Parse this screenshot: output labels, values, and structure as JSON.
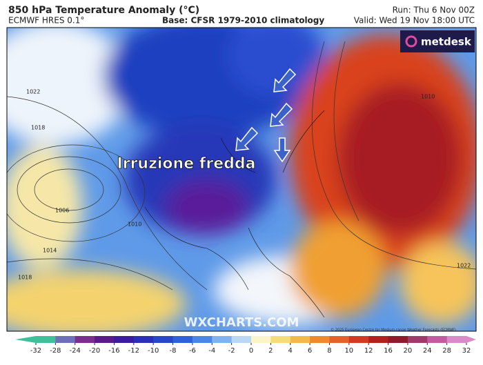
{
  "header": {
    "title": "850 hPa Temperature Anomaly (°C)",
    "model": "ECMWF HRES 0.1°",
    "base": "Base: CFSR 1979-2010 climatology",
    "run": "Run: Thu 6 Nov 00Z",
    "valid": "Valid: Wed 19 Nov 18:00 UTC"
  },
  "map": {
    "logo": "metdesk",
    "annotation": "Irruzione fredda",
    "watermark": "WXCHARTS.COM",
    "credit": "© 2025 European Centre for Medium-range Weather Forecasts (ECMWF)",
    "isobar_labels": [
      "1022",
      "1018",
      "1006",
      "1010",
      "1014",
      "1018",
      "1022",
      "1010"
    ]
  },
  "colorbar": {
    "ticks": [
      -32,
      -28,
      -24,
      -20,
      -16,
      -12,
      -10,
      -8,
      -6,
      -4,
      -2,
      0,
      2,
      4,
      6,
      8,
      10,
      12,
      16,
      20,
      24,
      28,
      32
    ],
    "colors": [
      "#3fbf9a",
      "#6e6fb8",
      "#7a2f8f",
      "#5a1a8a",
      "#3b1ca0",
      "#2a2fb8",
      "#2747c8",
      "#2f62d8",
      "#4a86e6",
      "#7fb2f0",
      "#b9d8f6",
      "#fbf4c8",
      "#f6dc78",
      "#f3b84a",
      "#ee8a2c",
      "#e4612a",
      "#d23a24",
      "#b3211f",
      "#8f1a2a",
      "#a03a6a",
      "#c45aa0",
      "#d98ac8"
    ]
  }
}
